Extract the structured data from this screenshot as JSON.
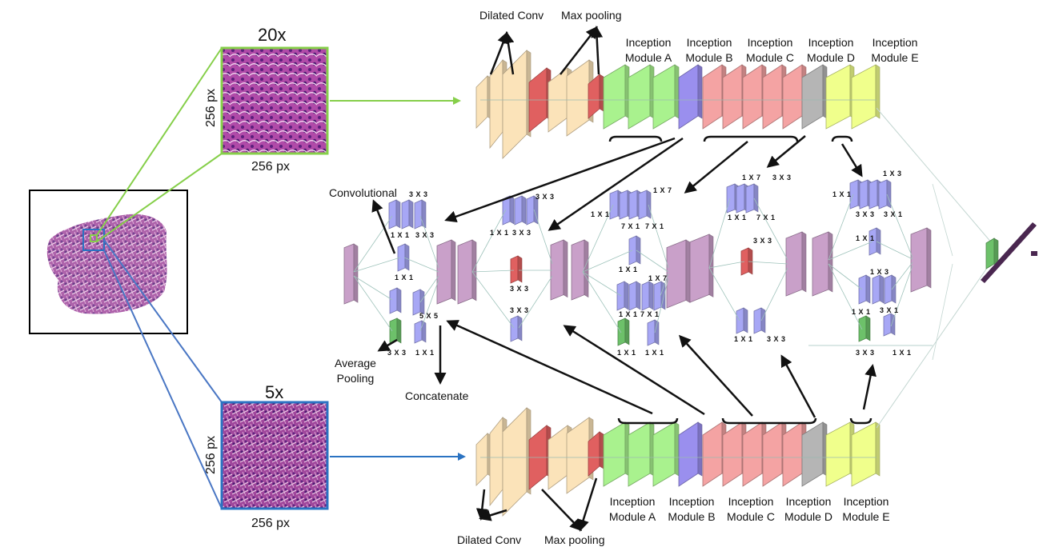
{
  "magnifications": {
    "top": "20x",
    "bottom": "5x"
  },
  "patch_size": {
    "top_width": "256 px",
    "top_height": "256 px",
    "bottom_width": "256 px",
    "bottom_height": "256 px"
  },
  "top_branch": {
    "dilated_conv": "Dilated Conv",
    "max_pooling": "Max pooling",
    "modules": [
      {
        "line1": "Inception",
        "line2": "Module A"
      },
      {
        "line1": "Inception",
        "line2": "Module B"
      },
      {
        "line1": "Inception",
        "line2": "Module C"
      },
      {
        "line1": "Inception",
        "line2": "Module D"
      },
      {
        "line1": "Inception",
        "line2": "Module E"
      }
    ]
  },
  "bottom_branch": {
    "dilated_conv": "Dilated Conv",
    "max_pooling": "Max pooling",
    "modules": [
      {
        "line1": "Inception",
        "line2": "Module A"
      },
      {
        "line1": "Inception",
        "line2": "Module B"
      },
      {
        "line1": "Inception",
        "line2": "Module C"
      },
      {
        "line1": "Inception",
        "line2": "Module D"
      },
      {
        "line1": "Inception",
        "line2": "Module E"
      }
    ]
  },
  "annotations": {
    "convolutional": "Convolutional",
    "average_pooling_1": "Average",
    "average_pooling_2": "Pooling",
    "concatenate": "Concatenate"
  },
  "kernels": {
    "a": [
      "3 X 3",
      "1 X 1",
      "3 X 3",
      "1 X 1",
      "5 X 5",
      "3 X 3",
      "1 X 1"
    ],
    "b": [
      "3 X 3",
      "1 X 1",
      "3 X 3",
      "3 X 3",
      "3 X 3"
    ],
    "c": [
      "1 X 7",
      "1 X 1",
      "7 X 1",
      "7 X 1",
      "1 X 1",
      "1 X 7",
      "1 X 1",
      "7 X 1",
      "1 X 1",
      "1 X 1"
    ],
    "d": [
      "1 X 7",
      "3 X 3",
      "1 X 1",
      "7 X 1",
      "3 X 3",
      "1 X 1",
      "3 X 3"
    ],
    "e": [
      "1 X 3",
      "1 X 1",
      "3 X 3",
      "3 X 1",
      "1 X 1",
      "1 X 3",
      "1 X 1",
      "3 X 1",
      "3 X 3",
      "1 X 1"
    ]
  },
  "colors": {
    "dilated_conv": "#fbe3b9",
    "max_pool": "#e06060",
    "module_a": "#a9f28e",
    "module_b": "#9a8fee",
    "module_c": "#f4a3a3",
    "module_d": "#b5b5b5",
    "module_e": "#f0ff8c",
    "inception_block": "#c9a0c9",
    "conv_kernel": "#a7a7f5",
    "pool_kernel": "#6dc16a",
    "arrow_top": "#86cf4a",
    "arrow_bottom": "#2b73c2"
  }
}
